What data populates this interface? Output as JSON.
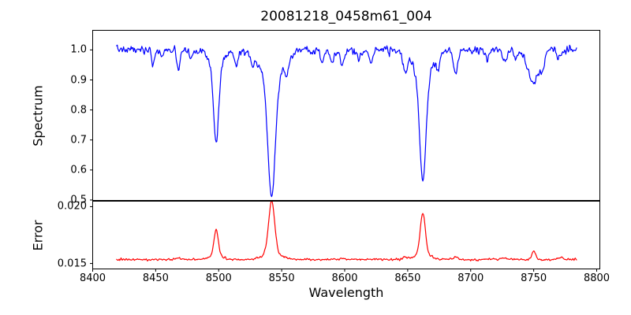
{
  "figure": {
    "title": "20081218_0458m61_004",
    "xlabel": "Wavelength",
    "background_color": "#ffffff",
    "axis_color": "#000000",
    "xlim": [
      8400,
      8802.5
    ],
    "xticks": [
      8400,
      8450,
      8500,
      8550,
      8600,
      8650,
      8700,
      8750,
      8800
    ],
    "xtick_labels": [
      "8400",
      "8450",
      "8500",
      "8550",
      "8600",
      "8650",
      "8700",
      "8750",
      "8800"
    ]
  },
  "chart_data": [
    {
      "type": "line",
      "series_name": "spectrum",
      "ylabel": "Spectrum",
      "line_color": "#0000ff",
      "x_start": 8419,
      "x_end": 8784,
      "sample_step": 0.5,
      "ylim": [
        0.4986,
        1.0653
      ],
      "yticks": [
        1.0,
        0.9,
        0.8,
        0.7,
        0.6,
        0.5
      ],
      "ytick_labels": [
        "1.0",
        "0.9",
        "0.8",
        "0.7",
        "0.6",
        "0.5"
      ],
      "continuum_level": 1.0,
      "noise_sigma": 0.008,
      "absorption_lines": [
        {
          "center": 8448,
          "depth": 0.05,
          "width": 1.2
        },
        {
          "center": 8455,
          "depth": 0.025,
          "width": 1.0
        },
        {
          "center": 8468,
          "depth": 0.065,
          "width": 1.4
        },
        {
          "center": 8478,
          "depth": 0.03,
          "width": 1.0
        },
        {
          "center": 8498,
          "depth": 0.255,
          "width": 2.0
        },
        {
          "center": 8498,
          "depth": 0.055,
          "width": 5.5
        },
        {
          "center": 8514,
          "depth": 0.055,
          "width": 1.3
        },
        {
          "center": 8527,
          "depth": 0.03,
          "width": 1.0
        },
        {
          "center": 8542,
          "depth": 0.395,
          "width": 2.9
        },
        {
          "center": 8542,
          "depth": 0.095,
          "width": 9.0
        },
        {
          "center": 8554,
          "depth": 0.045,
          "width": 1.2
        },
        {
          "center": 8582,
          "depth": 0.04,
          "width": 1.3
        },
        {
          "center": 8590,
          "depth": 0.035,
          "width": 1.5
        },
        {
          "center": 8598,
          "depth": 0.05,
          "width": 1.6
        },
        {
          "center": 8611,
          "depth": 0.03,
          "width": 1.2
        },
        {
          "center": 8621,
          "depth": 0.04,
          "width": 1.3
        },
        {
          "center": 8648,
          "depth": 0.065,
          "width": 1.6
        },
        {
          "center": 8662,
          "depth": 0.355,
          "width": 2.5
        },
        {
          "center": 8662,
          "depth": 0.08,
          "width": 7.5
        },
        {
          "center": 8674,
          "depth": 0.045,
          "width": 1.2
        },
        {
          "center": 8688,
          "depth": 0.075,
          "width": 1.7
        },
        {
          "center": 8713,
          "depth": 0.035,
          "width": 1.2
        },
        {
          "center": 8727,
          "depth": 0.045,
          "width": 1.5
        },
        {
          "center": 8736,
          "depth": 0.035,
          "width": 1.2
        },
        {
          "center": 8750,
          "depth": 0.11,
          "width": 4.5
        },
        {
          "center": 8757,
          "depth": 0.04,
          "width": 1.5
        },
        {
          "center": 8770,
          "depth": 0.035,
          "width": 1.5
        }
      ],
      "main_absorption_minima": [
        {
          "wavelength": 8498,
          "flux": 0.7
        },
        {
          "wavelength": 8542,
          "flux": 0.52
        },
        {
          "wavelength": 8662,
          "flux": 0.57
        }
      ]
    },
    {
      "type": "line",
      "series_name": "error",
      "ylabel": "Error",
      "line_color": "#ff0000",
      "x_start": 8419,
      "x_end": 8784,
      "sample_step": 0.5,
      "ylim": [
        0.01452,
        0.02048
      ],
      "yticks": [
        0.02,
        0.015
      ],
      "ytick_labels": [
        "0.020",
        "0.015"
      ],
      "baseline_level": 0.01535,
      "noise_sigma": 6e-05,
      "peaks": [
        {
          "center": 8468,
          "amplitude": 0.00015,
          "width": 1.5
        },
        {
          "center": 8498,
          "amplitude": 0.00225,
          "width": 1.8
        },
        {
          "center": 8498,
          "amplitude": 0.0003,
          "width": 5.0
        },
        {
          "center": 8542,
          "amplitude": 0.0045,
          "width": 2.4
        },
        {
          "center": 8542,
          "amplitude": 0.0006,
          "width": 7.0
        },
        {
          "center": 8598,
          "amplitude": 0.00015,
          "width": 1.5
        },
        {
          "center": 8648,
          "amplitude": 0.0002,
          "width": 1.5
        },
        {
          "center": 8662,
          "amplitude": 0.0036,
          "width": 2.0
        },
        {
          "center": 8662,
          "amplitude": 0.0005,
          "width": 6.0
        },
        {
          "center": 8688,
          "amplitude": 0.0002,
          "width": 1.5
        },
        {
          "center": 8727,
          "amplitude": 0.00015,
          "width": 1.5
        },
        {
          "center": 8750,
          "amplitude": 0.00075,
          "width": 1.6
        },
        {
          "center": 8772,
          "amplitude": 0.0002,
          "width": 1.5
        }
      ],
      "main_peak_values": [
        {
          "wavelength": 8498,
          "error": 0.0176
        },
        {
          "wavelength": 8542,
          "error": 0.0199
        },
        {
          "wavelength": 8662,
          "error": 0.019
        }
      ]
    }
  ]
}
